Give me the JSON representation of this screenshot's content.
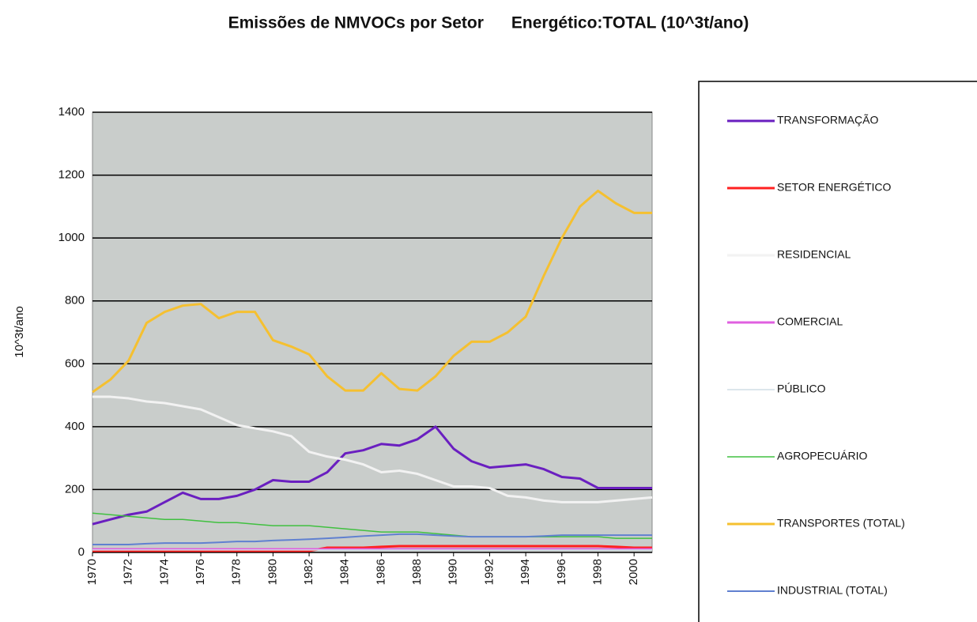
{
  "chart_data": {
    "type": "line",
    "title": "Emissões de NMVOCs por Setor      Energético:TOTAL (10^3t/ano)",
    "y_label": "10^3t/ano",
    "x": [
      1970,
      1971,
      1972,
      1973,
      1974,
      1975,
      1976,
      1977,
      1978,
      1979,
      1980,
      1981,
      1982,
      1983,
      1984,
      1985,
      1986,
      1987,
      1988,
      1989,
      1990,
      1991,
      1992,
      1993,
      1994,
      1995,
      1996,
      1997,
      1998,
      1999,
      2000,
      2001
    ],
    "xlim": [
      1970,
      2001
    ],
    "xticks": [
      1970,
      1972,
      1974,
      1976,
      1978,
      1980,
      1982,
      1984,
      1986,
      1988,
      1990,
      1992,
      1994,
      1996,
      1998,
      2000
    ],
    "ylim": [
      0,
      1400
    ],
    "yticks": [
      0,
      200,
      400,
      600,
      800,
      1000,
      1200,
      1400
    ],
    "grid": true,
    "legend": "right",
    "series": [
      {
        "name": "TRANSFORMAÇÃO",
        "color": "#6a1fc0",
        "width": 3,
        "values": [
          90,
          105,
          120,
          130,
          160,
          190,
          170,
          170,
          180,
          200,
          230,
          225,
          225,
          255,
          315,
          325,
          345,
          340,
          360,
          400,
          330,
          290,
          270,
          275,
          280,
          265,
          240,
          235,
          205,
          205,
          205,
          205
        ]
      },
      {
        "name": "SETOR ENERGÉTICO",
        "color": "#ff2020",
        "width": 3,
        "values": [
          5,
          5,
          5,
          5,
          5,
          5,
          5,
          5,
          5,
          5,
          5,
          5,
          5,
          15,
          15,
          15,
          18,
          20,
          20,
          20,
          20,
          20,
          20,
          20,
          20,
          20,
          20,
          20,
          20,
          18,
          15,
          15
        ]
      },
      {
        "name": "RESIDENCIAL",
        "color": "#f2f2f2",
        "width": 3,
        "values": [
          495,
          495,
          490,
          480,
          475,
          465,
          455,
          430,
          405,
          395,
          385,
          370,
          320,
          305,
          295,
          280,
          255,
          260,
          250,
          230,
          210,
          210,
          205,
          180,
          175,
          165,
          160,
          160,
          160,
          165,
          170,
          175
        ]
      },
      {
        "name": "COMERCIAL",
        "color": "#e060e0",
        "width": 3,
        "values": [
          10,
          10,
          10,
          10,
          10,
          10,
          10,
          10,
          10,
          10,
          10,
          10,
          10,
          10,
          10,
          10,
          10,
          10,
          10,
          10,
          10,
          10,
          10,
          10,
          10,
          10,
          10,
          10,
          10,
          10,
          10,
          10
        ]
      },
      {
        "name": "PÚBLICO",
        "color": "#d0dde6",
        "width": 1.5,
        "values": [
          8,
          8,
          8,
          8,
          8,
          8,
          8,
          8,
          8,
          8,
          8,
          8,
          8,
          8,
          8,
          8,
          8,
          8,
          8,
          8,
          8,
          8,
          8,
          8,
          8,
          8,
          8,
          8,
          8,
          8,
          8,
          8
        ]
      },
      {
        "name": "AGROPECUÁRIO",
        "color": "#40c040",
        "width": 1.5,
        "values": [
          125,
          120,
          115,
          110,
          105,
          105,
          100,
          95,
          95,
          90,
          85,
          85,
          85,
          80,
          75,
          70,
          65,
          65,
          65,
          60,
          55,
          50,
          50,
          50,
          50,
          50,
          50,
          50,
          50,
          45,
          45,
          45
        ]
      },
      {
        "name": "TRANSPORTES (TOTAL)",
        "color": "#f5c030",
        "width": 3,
        "values": [
          510,
          550,
          610,
          730,
          765,
          785,
          790,
          745,
          765,
          765,
          675,
          655,
          630,
          560,
          515,
          515,
          570,
          520,
          515,
          560,
          625,
          670,
          670,
          700,
          750,
          880,
          1000,
          1100,
          1150,
          1110,
          1080,
          1080
        ]
      },
      {
        "name": "INDUSTRIAL (TOTAL)",
        "color": "#6080d0",
        "width": 2,
        "values": [
          25,
          25,
          25,
          28,
          30,
          30,
          30,
          32,
          35,
          35,
          38,
          40,
          42,
          45,
          48,
          52,
          55,
          58,
          58,
          55,
          52,
          50,
          50,
          50,
          50,
          52,
          55,
          55,
          55,
          55,
          55,
          55
        ]
      }
    ]
  }
}
